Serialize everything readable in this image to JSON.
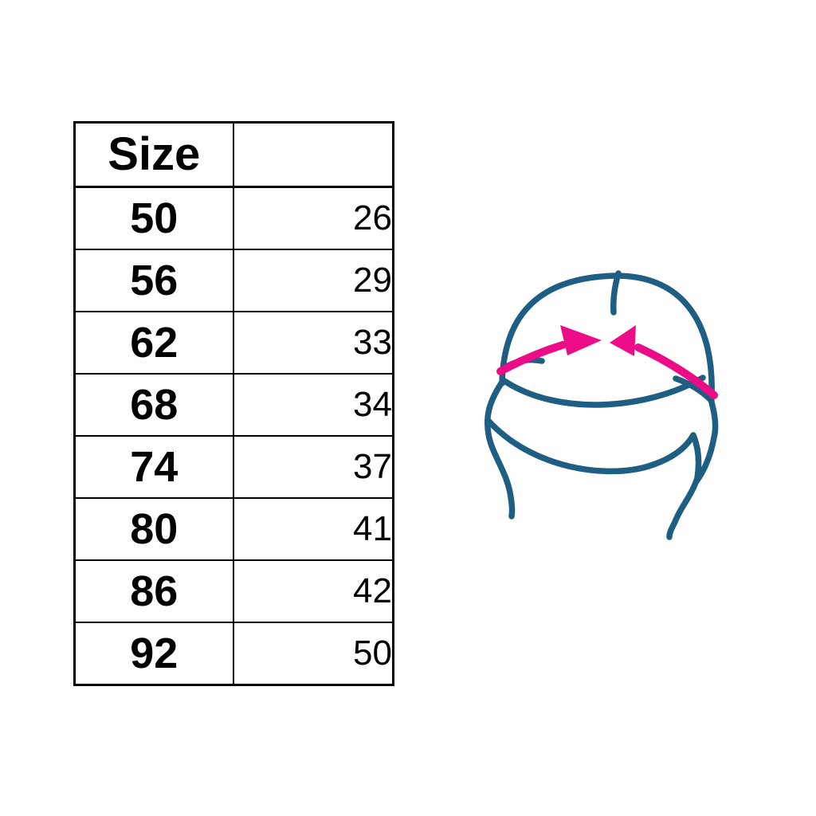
{
  "colors": {
    "background": "#ffffff",
    "table_border": "#000000",
    "text": "#000000"
  },
  "table": {
    "header": {
      "size_label": "Size",
      "measurement_label": ""
    },
    "rows": [
      {
        "size": "50",
        "measurement": "26"
      },
      {
        "size": "56",
        "measurement": "29"
      },
      {
        "size": "62",
        "measurement": "33"
      },
      {
        "size": "68",
        "measurement": "34"
      },
      {
        "size": "74",
        "measurement": "37"
      },
      {
        "size": "80",
        "measurement": "41"
      },
      {
        "size": "86",
        "measurement": "42"
      },
      {
        "size": "92",
        "measurement": "50"
      }
    ]
  },
  "illustration": {
    "name": "baby-hat-with-circumference-measure-arrows",
    "line_color": "#1e5e83",
    "arrow_color": "#ec0c87"
  },
  "chart_data": {
    "type": "table",
    "title": "",
    "columns": [
      "Size",
      ""
    ],
    "rows": [
      [
        50,
        26
      ],
      [
        56,
        29
      ],
      [
        62,
        33
      ],
      [
        68,
        34
      ],
      [
        74,
        37
      ],
      [
        80,
        41
      ],
      [
        86,
        42
      ],
      [
        92,
        50
      ]
    ]
  }
}
